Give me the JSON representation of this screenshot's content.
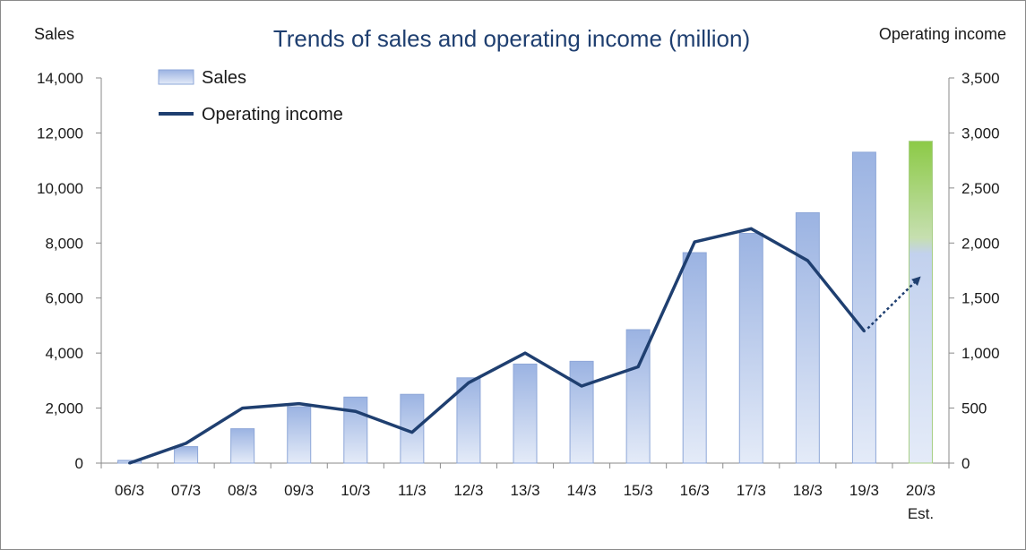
{
  "chart_data": {
    "type": "bar",
    "title": "Trends of sales and operating income (million)",
    "ylabel_left": "Sales",
    "ylabel_right": "Operating income",
    "categories": [
      "06/3",
      "07/3",
      "08/3",
      "09/3",
      "10/3",
      "11/3",
      "12/3",
      "13/3",
      "14/3",
      "15/3",
      "16/3",
      "17/3",
      "18/3",
      "19/3",
      "20/3"
    ],
    "category_notes": [
      "",
      "",
      "",
      "",
      "",
      "",
      "",
      "",
      "",
      "",
      "",
      "",
      "",
      "",
      "Est."
    ],
    "ylim_left": [
      0,
      14000
    ],
    "yticks_left": [
      "0",
      "2,000",
      "4,000",
      "6,000",
      "8,000",
      "10,000",
      "12,000",
      "14,000"
    ],
    "ylim_right": [
      0,
      3500
    ],
    "yticks_right": [
      "0",
      "500",
      "1,000",
      "1,500",
      "2,000",
      "2,500",
      "3,000",
      "3,500"
    ],
    "series": [
      {
        "name": "Sales",
        "type": "bar",
        "axis": "left",
        "values": [
          100,
          600,
          1250,
          2050,
          2400,
          2500,
          3100,
          3600,
          3700,
          4850,
          7650,
          8350,
          9100,
          11300,
          11700
        ],
        "color": "#a3b9e4",
        "estimate_color": "#8cca46"
      },
      {
        "name": "Operating income",
        "type": "line",
        "axis": "right",
        "values": [
          0,
          180,
          500,
          540,
          470,
          280,
          730,
          1000,
          700,
          875,
          2010,
          2130,
          1840,
          1200,
          null
        ],
        "color": "#1f3f70",
        "estimate_arrow": {
          "from_value": 1200,
          "to_value": 1680
        }
      }
    ],
    "legend_placement": "top-left",
    "grid": false
  }
}
